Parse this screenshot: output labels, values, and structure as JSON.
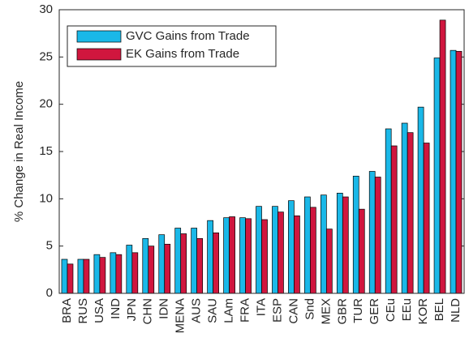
{
  "chart_data": {
    "type": "bar",
    "y_label": "% Change in Real Income",
    "categories": [
      "BRA",
      "RUS",
      "USA",
      "IND",
      "JPN",
      "CHN",
      "IDN",
      "MENA",
      "AUS",
      "SAU",
      "LAm",
      "FRA",
      "ITA",
      "ESP",
      "CAN",
      "Snd",
      "MEX",
      "GBR",
      "TUR",
      "GER",
      "CEu",
      "EEu",
      "KOR",
      "BEL",
      "NLD"
    ],
    "series": [
      {
        "name": "GVC Gains from Trade",
        "color": "#1ab8e8",
        "values": [
          3.6,
          3.6,
          4.1,
          4.3,
          5.1,
          5.8,
          6.2,
          6.9,
          6.9,
          7.7,
          8.0,
          8.0,
          9.2,
          9.2,
          9.8,
          10.2,
          10.4,
          10.6,
          12.4,
          12.9,
          17.4,
          18.0,
          19.7,
          24.9,
          25.7
        ]
      },
      {
        "name": "EK Gains from Trade",
        "color": "#d0163e",
        "values": [
          3.1,
          3.6,
          3.8,
          4.1,
          4.3,
          5.0,
          5.2,
          6.3,
          5.8,
          6.4,
          8.1,
          7.9,
          7.8,
          8.6,
          8.2,
          9.1,
          6.8,
          10.2,
          8.9,
          12.3,
          15.6,
          17.0,
          15.9,
          28.9,
          25.6
        ]
      }
    ],
    "ylim": [
      0,
      30
    ],
    "yticks": [
      0,
      5,
      10,
      15,
      20,
      25,
      30
    ],
    "legend": "upper left"
  }
}
